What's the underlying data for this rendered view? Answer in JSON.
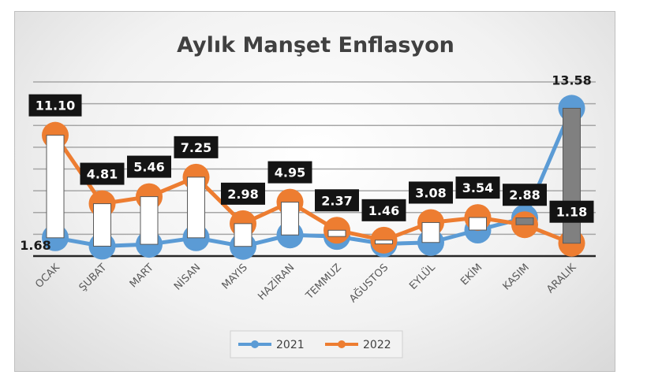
{
  "chart_data": {
    "type": "line",
    "title": "Aylık Manşet Enflasyon",
    "categories": [
      "OCAK",
      "ŞUBAT",
      "MART",
      "NİSAN",
      "MAYIS",
      "HAZİRAN",
      "TEMMUZ",
      "AĞUSTOS",
      "EYLÜL",
      "EKİM",
      "KASIM",
      "ARALIK"
    ],
    "series": [
      {
        "name": "2021",
        "color": "#5b9bd5",
        "values": [
          1.68,
          0.91,
          1.08,
          1.68,
          0.89,
          1.94,
          1.8,
          1.12,
          1.25,
          2.39,
          3.51,
          13.58
        ],
        "data_labels": {
          "0": "1.68",
          "11": "13.58"
        }
      },
      {
        "name": "2022",
        "color": "#ed7d31",
        "values": [
          11.1,
          4.81,
          5.46,
          7.25,
          2.98,
          4.95,
          2.37,
          1.46,
          3.08,
          3.54,
          2.88,
          1.18
        ],
        "data_labels": {
          "0": "11.10",
          "1": "4.81",
          "2": "5.46",
          "3": "7.25",
          "4": "2.98",
          "5": "4.95",
          "6": "2.37",
          "7": "1.46",
          "8": "3.08",
          "9": "3.54",
          "10": "2.88",
          "11": "1.18"
        }
      }
    ],
    "up_down_bars": {
      "up_color": "#ffffff",
      "down_color": "#808080"
    },
    "ylim": [
      0,
      16
    ],
    "y_grid_step": 2,
    "y_tick_labels_shown": false,
    "grid": true,
    "legend": "bottom"
  }
}
